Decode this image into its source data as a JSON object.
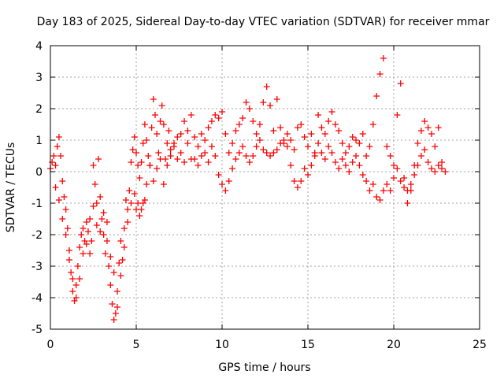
{
  "chart_data": {
    "type": "scatter",
    "title": "Day 183 of 2025, Sidereal Day-to-day VTEC variation (SDTVAR) for receiver mmar",
    "xlabel": "GPS time / hours",
    "ylabel": "SDTVAR / TECUs",
    "xlim": [
      0,
      25
    ],
    "ylim": [
      -5,
      4
    ],
    "xticks": [
      0,
      5,
      10,
      15,
      20,
      25
    ],
    "yticks": [
      -5,
      -4,
      -3,
      -2,
      -1,
      0,
      1,
      2,
      3,
      4
    ],
    "grid": true,
    "marker": "+",
    "color": "#ff0000",
    "series": [
      {
        "name": "SDTVAR",
        "points": [
          [
            0.0,
            0.1
          ],
          [
            0.1,
            0.3
          ],
          [
            0.2,
            0.5
          ],
          [
            0.3,
            0.2
          ],
          [
            0.4,
            0.8
          ],
          [
            0.5,
            1.1
          ],
          [
            0.6,
            0.5
          ],
          [
            0.7,
            -0.3
          ],
          [
            0.8,
            -0.8
          ],
          [
            0.9,
            -1.2
          ],
          [
            1.0,
            -1.8
          ],
          [
            1.1,
            -2.5
          ],
          [
            1.2,
            -3.2
          ],
          [
            1.3,
            -3.8
          ],
          [
            1.4,
            -4.1
          ],
          [
            1.5,
            -3.6
          ],
          [
            1.6,
            -3.0
          ],
          [
            1.7,
            -2.4
          ],
          [
            1.8,
            -2.0
          ],
          [
            1.9,
            -1.8
          ],
          [
            2.0,
            -2.2
          ],
          [
            2.1,
            -1.6
          ],
          [
            2.2,
            -1.9
          ],
          [
            2.3,
            -2.6
          ],
          [
            2.4,
            -2.2
          ],
          [
            2.5,
            0.2
          ],
          [
            2.6,
            -0.4
          ],
          [
            2.7,
            -1.0
          ],
          [
            2.8,
            0.4
          ],
          [
            2.9,
            -0.8
          ],
          [
            3.0,
            -1.5
          ],
          [
            3.1,
            -2.0
          ],
          [
            3.2,
            -2.6
          ],
          [
            3.3,
            -2.2
          ],
          [
            3.4,
            -3.0
          ],
          [
            3.5,
            -3.6
          ],
          [
            3.6,
            -4.2
          ],
          [
            3.7,
            -4.7
          ],
          [
            3.8,
            -4.5
          ],
          [
            3.9,
            -3.8
          ],
          [
            4.0,
            -2.9
          ],
          [
            4.1,
            -2.2
          ],
          [
            4.2,
            -2.8
          ],
          [
            4.3,
            -1.8
          ],
          [
            4.4,
            -0.9
          ],
          [
            4.5,
            -1.2
          ],
          [
            4.6,
            -0.6
          ],
          [
            4.7,
            0.3
          ],
          [
            4.8,
            0.7
          ],
          [
            4.9,
            1.1
          ],
          [
            5.0,
            0.6
          ],
          [
            5.1,
            0.2
          ],
          [
            5.2,
            -0.2
          ],
          [
            5.3,
            0.3
          ],
          [
            5.4,
            0.9
          ],
          [
            5.5,
            1.5
          ],
          [
            5.6,
            1.0
          ],
          [
            5.7,
            0.5
          ],
          [
            5.8,
            0.2
          ],
          [
            5.9,
            1.4
          ],
          [
            6.0,
            2.3
          ],
          [
            6.1,
            1.8
          ],
          [
            6.2,
            1.2
          ],
          [
            6.3,
            0.6
          ],
          [
            6.4,
            1.6
          ],
          [
            6.5,
            2.1
          ],
          [
            6.6,
            1.5
          ],
          [
            6.7,
            0.4
          ],
          [
            6.8,
            0.9
          ],
          [
            6.9,
            1.3
          ],
          [
            7.0,
            0.7
          ],
          [
            7.2,
            0.9
          ],
          [
            7.4,
            0.4
          ],
          [
            7.6,
            1.2
          ],
          [
            7.8,
            1.6
          ],
          [
            8.0,
            1.3
          ],
          [
            8.2,
            1.8
          ],
          [
            8.4,
            0.4
          ],
          [
            8.6,
            0.2
          ],
          [
            8.8,
            0.5
          ],
          [
            9.0,
            1.0
          ],
          [
            9.2,
            1.4
          ],
          [
            9.4,
            1.6
          ],
          [
            9.6,
            1.8
          ],
          [
            9.8,
            1.7
          ],
          [
            10.0,
            1.9
          ],
          [
            10.2,
            1.2
          ],
          [
            10.4,
            0.6
          ],
          [
            10.6,
            0.9
          ],
          [
            10.8,
            1.3
          ],
          [
            11.0,
            1.5
          ],
          [
            11.2,
            1.7
          ],
          [
            11.4,
            2.2
          ],
          [
            11.6,
            2.0
          ],
          [
            11.8,
            1.6
          ],
          [
            12.0,
            1.2
          ],
          [
            12.2,
            1.5
          ],
          [
            12.4,
            2.2
          ],
          [
            12.6,
            2.7
          ],
          [
            12.8,
            2.1
          ],
          [
            13.0,
            1.3
          ],
          [
            13.2,
            2.3
          ],
          [
            13.4,
            1.4
          ],
          [
            13.6,
            0.9
          ],
          [
            13.8,
            1.2
          ],
          [
            14.0,
            1.0
          ],
          [
            14.2,
            0.7
          ],
          [
            14.4,
            1.4
          ],
          [
            14.6,
            1.5
          ],
          [
            14.8,
            1.1
          ],
          [
            15.0,
            0.8
          ],
          [
            15.2,
            1.2
          ],
          [
            15.4,
            0.6
          ],
          [
            15.6,
            1.8
          ],
          [
            15.8,
            1.4
          ],
          [
            16.0,
            1.2
          ],
          [
            16.2,
            1.6
          ],
          [
            16.4,
            1.9
          ],
          [
            16.6,
            1.5
          ],
          [
            16.8,
            1.3
          ],
          [
            17.0,
            0.9
          ],
          [
            17.2,
            0.6
          ],
          [
            17.4,
            0.8
          ],
          [
            17.6,
            1.1
          ],
          [
            17.8,
            1.0
          ],
          [
            18.0,
            0.9
          ],
          [
            18.2,
            1.2
          ],
          [
            18.4,
            0.5
          ],
          [
            18.6,
            0.8
          ],
          [
            18.8,
            1.5
          ],
          [
            19.0,
            2.4
          ],
          [
            19.2,
            3.1
          ],
          [
            19.4,
            3.6
          ],
          [
            19.6,
            0.8
          ],
          [
            19.8,
            0.5
          ],
          [
            20.0,
            0.2
          ],
          [
            20.2,
            1.8
          ],
          [
            20.4,
            2.8
          ],
          [
            20.6,
            -0.2
          ],
          [
            20.8,
            -0.6
          ],
          [
            21.0,
            -0.4
          ],
          [
            21.2,
            -0.1
          ],
          [
            21.4,
            0.2
          ],
          [
            21.6,
            0.5
          ],
          [
            21.8,
            0.7
          ],
          [
            22.0,
            0.3
          ],
          [
            22.2,
            0.1
          ],
          [
            22.4,
            0.0
          ],
          [
            22.6,
            0.2
          ],
          [
            22.8,
            0.1
          ],
          [
            23.0,
            0.0
          ],
          [
            5.0,
            -1.2
          ],
          [
            5.2,
            -1.4
          ],
          [
            5.4,
            -1.0
          ],
          [
            5.6,
            -0.4
          ],
          [
            5.8,
            0.2
          ],
          [
            6.0,
            -0.3
          ],
          [
            6.2,
            0.1
          ],
          [
            6.4,
            0.4
          ],
          [
            6.6,
            -0.4
          ],
          [
            6.8,
            0.2
          ],
          [
            7.0,
            0.5
          ],
          [
            7.2,
            0.8
          ],
          [
            7.4,
            1.1
          ],
          [
            7.6,
            0.6
          ],
          [
            7.8,
            0.3
          ],
          [
            8.0,
            0.9
          ],
          [
            8.2,
            0.4
          ],
          [
            8.4,
            1.1
          ],
          [
            8.6,
            0.8
          ],
          [
            8.8,
            1.2
          ],
          [
            9.0,
            0.6
          ],
          [
            9.2,
            0.3
          ],
          [
            9.4,
            0.8
          ],
          [
            9.6,
            0.5
          ],
          [
            9.8,
            -0.1
          ],
          [
            10.0,
            -0.4
          ],
          [
            10.2,
            -0.6
          ],
          [
            10.4,
            -0.3
          ],
          [
            10.6,
            0.1
          ],
          [
            10.8,
            0.4
          ],
          [
            11.0,
            0.6
          ],
          [
            11.2,
            0.8
          ],
          [
            11.4,
            0.5
          ],
          [
            11.6,
            0.3
          ],
          [
            11.8,
            0.5
          ],
          [
            12.0,
            0.8
          ],
          [
            12.2,
            1.0
          ],
          [
            12.4,
            0.7
          ],
          [
            12.6,
            0.6
          ],
          [
            12.8,
            0.5
          ],
          [
            13.0,
            0.6
          ],
          [
            13.2,
            0.7
          ],
          [
            13.4,
            0.9
          ],
          [
            13.6,
            1.0
          ],
          [
            13.8,
            0.8
          ],
          [
            14.0,
            0.2
          ],
          [
            14.2,
            -0.3
          ],
          [
            14.4,
            -0.5
          ],
          [
            14.6,
            -0.3
          ],
          [
            14.8,
            0.1
          ],
          [
            15.0,
            -0.1
          ],
          [
            15.2,
            0.2
          ],
          [
            15.4,
            0.5
          ],
          [
            15.6,
            0.9
          ],
          [
            15.8,
            0.6
          ],
          [
            16.0,
            0.4
          ],
          [
            16.2,
            0.8
          ],
          [
            16.4,
            0.6
          ],
          [
            16.6,
            0.3
          ],
          [
            16.8,
            0.1
          ],
          [
            17.0,
            0.4
          ],
          [
            17.2,
            0.2
          ],
          [
            17.4,
            0.0
          ],
          [
            17.6,
            0.3
          ],
          [
            17.8,
            0.5
          ],
          [
            18.0,
            0.2
          ],
          [
            18.2,
            -0.1
          ],
          [
            18.4,
            -0.3
          ],
          [
            18.6,
            -0.6
          ],
          [
            18.8,
            -0.4
          ],
          [
            19.0,
            -0.8
          ],
          [
            19.2,
            -0.9
          ],
          [
            19.4,
            -0.6
          ],
          [
            19.6,
            -0.4
          ],
          [
            19.8,
            -0.6
          ],
          [
            20.0,
            -0.2
          ],
          [
            20.2,
            0.1
          ],
          [
            20.4,
            -0.3
          ],
          [
            20.6,
            -0.5
          ],
          [
            20.8,
            -1.0
          ],
          [
            21.0,
            -0.6
          ],
          [
            21.2,
            0.2
          ],
          [
            21.4,
            0.9
          ],
          [
            21.6,
            1.3
          ],
          [
            21.8,
            1.6
          ],
          [
            22.0,
            1.4
          ],
          [
            22.2,
            1.2
          ],
          [
            22.4,
            0.8
          ],
          [
            22.6,
            1.4
          ],
          [
            22.8,
            0.3
          ],
          [
            0.3,
            -0.5
          ],
          [
            0.5,
            -0.9
          ],
          [
            0.7,
            -1.5
          ],
          [
            0.9,
            -2.0
          ],
          [
            1.1,
            -2.8
          ],
          [
            1.3,
            -3.4
          ],
          [
            1.5,
            -4.0
          ],
          [
            1.7,
            -3.4
          ],
          [
            1.9,
            -2.6
          ],
          [
            2.1,
            -2.3
          ],
          [
            2.3,
            -1.5
          ],
          [
            2.5,
            -1.1
          ],
          [
            2.7,
            -1.7
          ],
          [
            2.9,
            -1.9
          ],
          [
            3.1,
            -1.3
          ],
          [
            3.3,
            -1.6
          ],
          [
            3.5,
            -2.7
          ],
          [
            3.7,
            -3.2
          ],
          [
            3.9,
            -4.3
          ],
          [
            4.1,
            -3.3
          ],
          [
            4.3,
            -2.4
          ],
          [
            4.5,
            -1.6
          ],
          [
            4.7,
            -1.0
          ],
          [
            4.9,
            -0.7
          ],
          [
            5.1,
            -1.0
          ],
          [
            5.3,
            -1.2
          ],
          [
            5.5,
            -0.9
          ]
        ]
      }
    ]
  }
}
